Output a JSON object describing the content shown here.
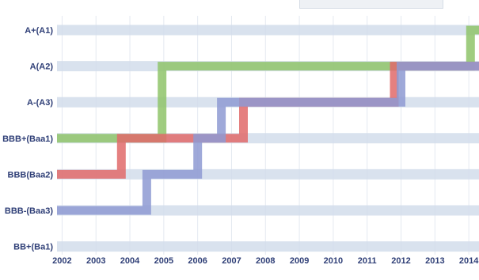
{
  "chart_data": {
    "type": "line",
    "step": true,
    "title": "",
    "xlabel": "",
    "ylabel": "",
    "x_ticks": [
      "2002",
      "2003",
      "2004",
      "2005",
      "2006",
      "2007",
      "2008",
      "2009",
      "2010",
      "2011",
      "2012",
      "2013",
      "2014"
    ],
    "y_categories": [
      "BB+(Ba1)",
      "BBB-(Baa3)",
      "BBB(Baa2)",
      "BBB+(Baa1)",
      "A-(A3)",
      "A(A2)",
      "A+(A1)"
    ],
    "xlim": [
      2001.85,
      2014.3
    ],
    "grid": true,
    "legend": "none",
    "series": [
      {
        "color": "#8fc46a",
        "points": [
          {
            "x": 2001.85,
            "y": "BBB+(Baa1)"
          },
          {
            "x": 2004.95,
            "y": "BBB+(Baa1)"
          },
          {
            "x": 2004.95,
            "y": "A(A2)"
          },
          {
            "x": 2014.05,
            "y": "A(A2)"
          },
          {
            "x": 2014.05,
            "y": "A+(A1)"
          },
          {
            "x": 2014.3,
            "y": "A+(A1)"
          }
        ]
      },
      {
        "color": "#e06a6a",
        "points": [
          {
            "x": 2001.85,
            "y": "BBB(Baa2)"
          },
          {
            "x": 2003.75,
            "y": "BBB(Baa2)"
          },
          {
            "x": 2003.75,
            "y": "BBB+(Baa1)"
          },
          {
            "x": 2007.35,
            "y": "BBB+(Baa1)"
          },
          {
            "x": 2007.35,
            "y": "A-(A3)"
          },
          {
            "x": 2011.8,
            "y": "A-(A3)"
          },
          {
            "x": 2011.8,
            "y": "A(A2)"
          },
          {
            "x": 2014.3,
            "y": "A(A2)"
          }
        ]
      },
      {
        "color": "#8e9ad2",
        "points": [
          {
            "x": 2001.85,
            "y": "BBB-(Baa3)"
          },
          {
            "x": 2004.5,
            "y": "BBB-(Baa3)"
          },
          {
            "x": 2004.5,
            "y": "BBB(Baa2)"
          },
          {
            "x": 2006.0,
            "y": "BBB(Baa2)"
          },
          {
            "x": 2006.0,
            "y": "BBB+(Baa1)"
          },
          {
            "x": 2006.7,
            "y": "BBB+(Baa1)"
          },
          {
            "x": 2006.7,
            "y": "A-(A3)"
          },
          {
            "x": 2012.0,
            "y": "A-(A3)"
          },
          {
            "x": 2012.0,
            "y": "A(A2)"
          },
          {
            "x": 2014.3,
            "y": "A(A2)"
          }
        ]
      }
    ]
  }
}
